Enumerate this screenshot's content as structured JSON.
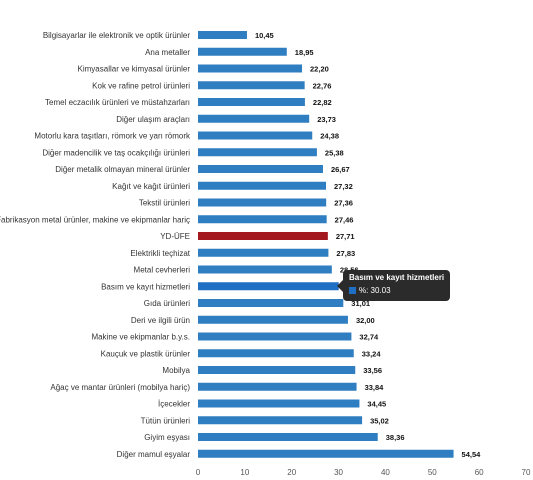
{
  "chart_data": {
    "type": "bar",
    "orientation": "horizontal",
    "categories": [
      "Bilgisayarlar ile elektronik ve optik ürünler",
      "Ana metaller",
      "Kimyasallar ve kimyasal ürünler",
      "Kok ve rafine petrol ürünleri",
      "Temel eczacılık ürünleri ve müstahzarları",
      "Diğer ulaşım araçları",
      "Motorlu kara taşıtları, römork ve yarı römork",
      "Diğer madencilik ve taş ocakçılığı ürünleri",
      "Diğer metalik olmayan mineral ürünler",
      "Kağıt ve kağıt ürünleri",
      "Tekstil ürünleri",
      "Fabrikasyon metal ürünler, makine ve ekipmanlar hariç",
      "YD-ÜFE",
      "Elektrikli teçhizat",
      "Metal cevherleri",
      "Basım ve kayıt hizmetleri",
      "Gıda ürünleri",
      "Deri ve ilgili ürün",
      "Makine ve ekipmanlar b.y.s.",
      "Kauçuk ve plastik ürünler",
      "Mobilya",
      "Ağaç ve mantar ürünleri (mobilya hariç)",
      "İçecekler",
      "Tütün ürünleri",
      "Giyim eşyası",
      "Diğer mamul eşyalar"
    ],
    "values": [
      10.45,
      18.95,
      22.2,
      22.76,
      22.82,
      23.73,
      24.38,
      25.38,
      26.67,
      27.32,
      27.36,
      27.46,
      27.71,
      27.83,
      28.56,
      30.03,
      31.01,
      32.0,
      32.74,
      33.24,
      33.56,
      33.84,
      34.45,
      35.02,
      38.36,
      54.54
    ],
    "value_labels": [
      "10,45",
      "18,95",
      "22,20",
      "22,76",
      "22,82",
      "23,73",
      "24,38",
      "25,38",
      "26,67",
      "27,32",
      "27,36",
      "27,46",
      "27,71",
      "27,83",
      "28,56",
      "30,03",
      "31,01",
      "32,00",
      "32,74",
      "33,24",
      "33,56",
      "33,84",
      "34,45",
      "35,02",
      "38,36",
      "54,54"
    ],
    "highlight_index": 12,
    "hover_index": 15,
    "xlim": [
      0,
      70
    ],
    "xticks": [
      0,
      10,
      20,
      30,
      40,
      50,
      60,
      70
    ],
    "grid": false,
    "colors": {
      "bar": "#2f7ec1",
      "highlight": "#a3181e",
      "hover": "#1f6fc4"
    },
    "tooltip": {
      "title": "Basım ve kayıt hizmetleri",
      "label": "%: 30.03"
    }
  }
}
